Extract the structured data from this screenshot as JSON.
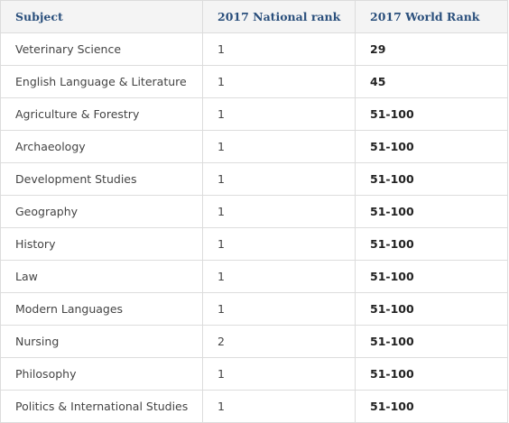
{
  "table": {
    "headers": [
      "Subject",
      "2017 National rank",
      "2017 World Rank"
    ],
    "rows": [
      [
        "Veterinary Science",
        "1",
        "29"
      ],
      [
        "English Language & Literature",
        "1",
        "45"
      ],
      [
        "Agriculture & Forestry",
        "1",
        "51-100"
      ],
      [
        "Archaeology",
        "1",
        "51-100"
      ],
      [
        "Development Studies",
        "1",
        "51-100"
      ],
      [
        "Geography",
        "1",
        "51-100"
      ],
      [
        "History",
        "1",
        "51-100"
      ],
      [
        "Law",
        "1",
        "51-100"
      ],
      [
        "Modern Languages",
        "1",
        "51-100"
      ],
      [
        "Nursing",
        "2",
        "51-100"
      ],
      [
        "Philosophy",
        "1",
        "51-100"
      ],
      [
        "Politics & International Studies",
        "1",
        "51-100"
      ]
    ]
  }
}
